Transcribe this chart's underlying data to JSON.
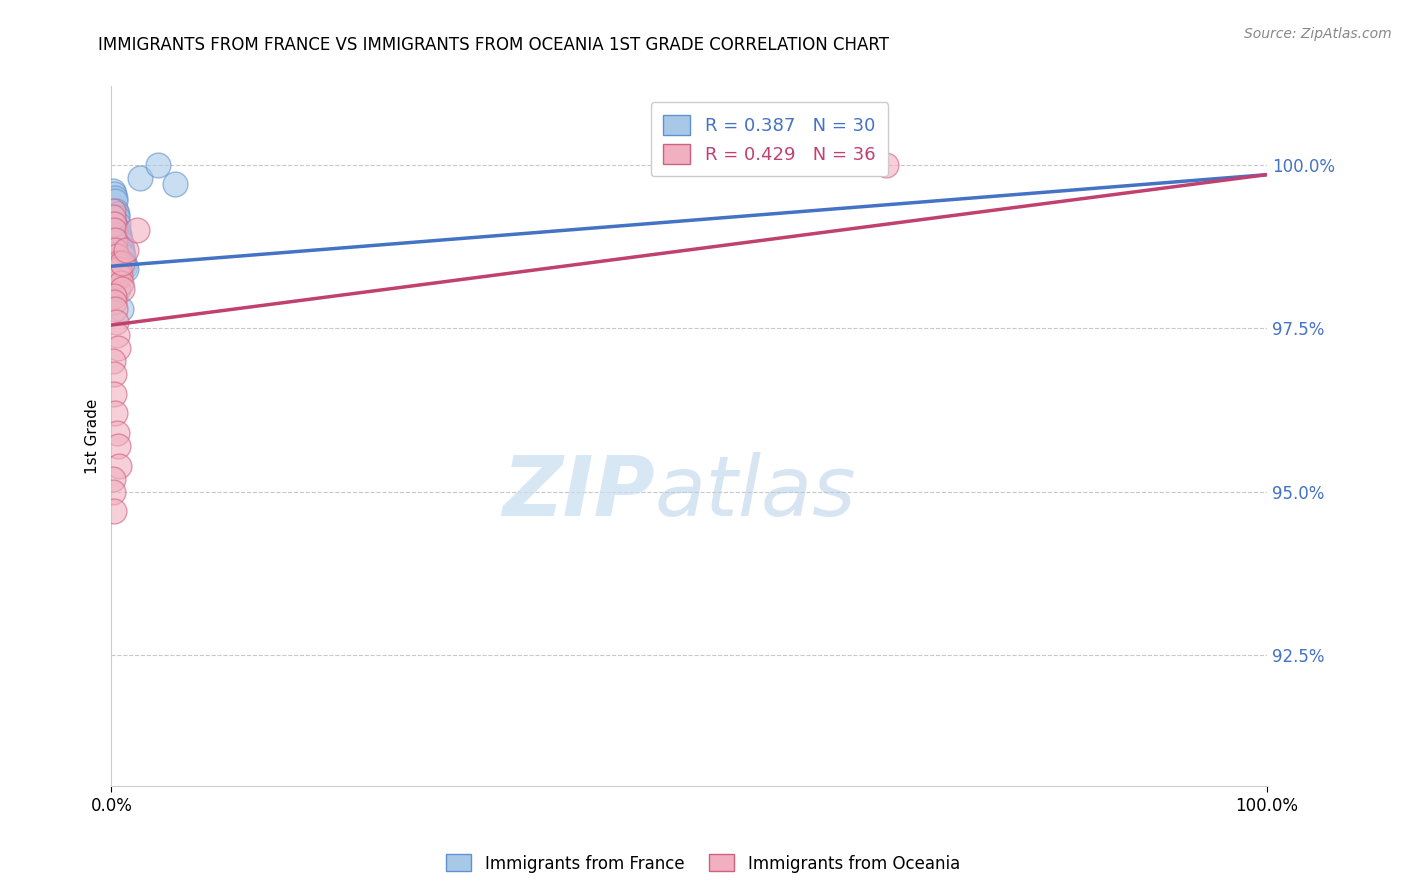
{
  "title": "IMMIGRANTS FROM FRANCE VS IMMIGRANTS FROM OCEANIA 1ST GRADE CORRELATION CHART",
  "source_text": "Source: ZipAtlas.com",
  "ylabel": "1st Grade",
  "blue_label": "Immigrants from France",
  "pink_label": "Immigrants from Oceania",
  "blue_R": 0.387,
  "blue_N": 30,
  "pink_R": 0.429,
  "pink_N": 36,
  "blue_color": "#A8C8E8",
  "pink_color": "#F0B0C0",
  "blue_edge_color": "#6090D0",
  "pink_edge_color": "#D06080",
  "blue_line_color": "#4472C4",
  "pink_line_color": "#C04070",
  "xlim": [
    0.0,
    100.0
  ],
  "ylim": [
    90.5,
    101.2
  ],
  "y_ticks": [
    92.5,
    95.0,
    97.5,
    100.0
  ],
  "y_tick_labels": [
    "92.5%",
    "95.0%",
    "97.5%",
    "100.0%"
  ],
  "blue_trend_start_y": 98.45,
  "blue_trend_end_y": 99.85,
  "pink_trend_start_y": 97.55,
  "pink_trend_end_y": 99.85,
  "blue_x": [
    0.15,
    0.25,
    0.3,
    0.35,
    0.4,
    0.45,
    0.5,
    0.55,
    0.6,
    0.65,
    0.7,
    0.75,
    0.8,
    0.85,
    0.9,
    0.95,
    1.0,
    1.1,
    1.2,
    1.3,
    0.2,
    0.25,
    0.3,
    0.4,
    0.5,
    0.6,
    0.8,
    2.5,
    4.0,
    5.5
  ],
  "blue_y": [
    99.6,
    99.55,
    99.5,
    99.45,
    99.3,
    99.25,
    99.2,
    99.1,
    99.0,
    98.95,
    98.9,
    98.85,
    98.8,
    98.75,
    98.7,
    98.65,
    98.6,
    98.5,
    98.45,
    98.4,
    99.1,
    98.9,
    98.7,
    98.5,
    98.3,
    98.1,
    97.8,
    99.8,
    100.0,
    99.7
  ],
  "pink_x": [
    0.1,
    0.15,
    0.2,
    0.25,
    0.3,
    0.35,
    0.4,
    0.45,
    0.5,
    0.55,
    0.6,
    0.65,
    0.7,
    0.75,
    0.8,
    0.9,
    0.2,
    0.25,
    0.3,
    0.4,
    0.5,
    0.6,
    0.15,
    0.2,
    0.25,
    0.35,
    0.45,
    0.55,
    0.65,
    0.1,
    0.15,
    0.2,
    0.9,
    1.3,
    2.2,
    67.0
  ],
  "pink_y": [
    99.3,
    99.2,
    99.1,
    99.0,
    98.85,
    98.7,
    98.5,
    98.3,
    98.6,
    98.45,
    98.3,
    98.5,
    98.4,
    98.3,
    98.2,
    98.1,
    98.0,
    97.9,
    97.8,
    97.6,
    97.4,
    97.2,
    97.0,
    96.8,
    96.5,
    96.2,
    95.9,
    95.7,
    95.4,
    95.2,
    95.0,
    94.7,
    98.5,
    98.7,
    99.0,
    100.0
  ]
}
